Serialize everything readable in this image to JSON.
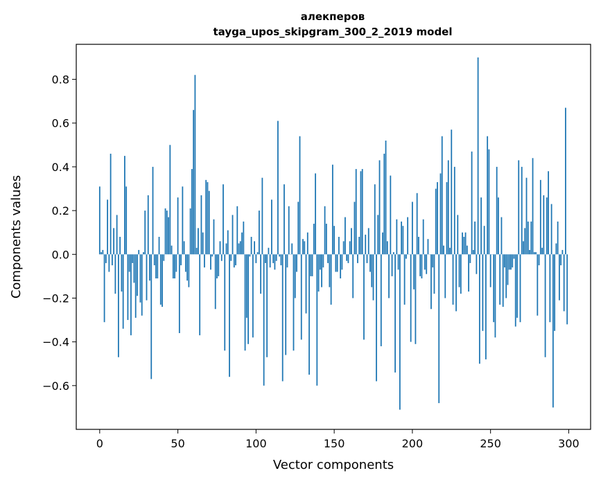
{
  "chart_data": {
    "type": "bar",
    "title": "алекперов",
    "subtitle": "tayga_upos_skipgram_300_2_2019 model",
    "xlabel": "Vector components",
    "ylabel": "Components values",
    "xlim": [
      -15,
      314
    ],
    "ylim": [
      -0.8,
      0.96
    ],
    "xticks": [
      0,
      50,
      100,
      150,
      200,
      250,
      300
    ],
    "yticks": [
      -0.6,
      -0.4,
      -0.2,
      0.0,
      0.2,
      0.4,
      0.6,
      0.8
    ],
    "xtick_labels": [
      "0",
      "50",
      "100",
      "150",
      "200",
      "250",
      "300"
    ],
    "ytick_labels": [
      "−0.6",
      "−0.4",
      "−0.2",
      "0.0",
      "0.2",
      "0.4",
      "0.6",
      "0.8"
    ],
    "bar_color": "#1f77b4",
    "values": [
      0.31,
      0.01,
      0.02,
      -0.31,
      -0.04,
      0.25,
      -0.08,
      0.46,
      -0.05,
      0.12,
      -0.18,
      0.18,
      -0.47,
      0.08,
      -0.17,
      -0.34,
      0.45,
      0.31,
      -0.3,
      -0.08,
      -0.37,
      -0.04,
      -0.13,
      -0.29,
      -0.19,
      0.02,
      -0.22,
      -0.28,
      0.01,
      0.2,
      -0.21,
      0.27,
      -0.12,
      -0.57,
      0.4,
      -0.05,
      -0.11,
      -0.11,
      0.08,
      -0.23,
      -0.24,
      -0.03,
      0.21,
      0.2,
      0.17,
      0.5,
      0.04,
      -0.11,
      -0.11,
      -0.08,
      0.26,
      -0.36,
      -0.05,
      0.31,
      0.06,
      -0.08,
      -0.12,
      -0.15,
      0.21,
      0.39,
      0.66,
      0.82,
      0.03,
      0.12,
      -0.37,
      0.27,
      0.1,
      -0.06,
      0.34,
      0.33,
      0.29,
      -0.07,
      -0.01,
      0.16,
      -0.25,
      -0.11,
      -0.1,
      0.06,
      -0.03,
      0.32,
      -0.44,
      0.05,
      0.11,
      -0.56,
      -0.03,
      0.18,
      -0.06,
      -0.05,
      0.22,
      0.05,
      0.06,
      0.1,
      0.15,
      -0.44,
      -0.29,
      -0.41,
      -0.01,
      0.08,
      -0.38,
      0.06,
      -0.04,
      0.01,
      0.2,
      -0.18,
      0.35,
      -0.6,
      -0.04,
      -0.47,
      0.03,
      -0.06,
      0.25,
      -0.04,
      -0.07,
      -0.03,
      0.61,
      -0.01,
      -0.05,
      -0.58,
      0.32,
      -0.46,
      -0.06,
      0.22,
      0.0,
      0.05,
      -0.44,
      -0.2,
      -0.08,
      0.24,
      0.54,
      -0.39,
      0.07,
      0.06,
      -0.27,
      0.1,
      -0.55,
      -0.1,
      -0.1,
      0.14,
      0.37,
      -0.6,
      -0.17,
      -0.07,
      -0.15,
      -0.06,
      0.22,
      0.14,
      -0.04,
      -0.15,
      -0.23,
      0.41,
      0.13,
      -0.08,
      -0.08,
      0.08,
      -0.11,
      -0.07,
      0.06,
      0.17,
      -0.03,
      -0.04,
      0.06,
      0.12,
      -0.2,
      0.24,
      0.39,
      -0.04,
      0.08,
      0.38,
      0.39,
      -0.39,
      0.09,
      -0.04,
      0.12,
      -0.08,
      -0.15,
      -0.21,
      0.32,
      -0.58,
      0.18,
      0.43,
      -0.42,
      0.1,
      0.46,
      0.52,
      0.06,
      -0.2,
      0.36,
      -0.1,
      0.01,
      -0.54,
      0.16,
      -0.07,
      -0.71,
      0.15,
      0.13,
      -0.23,
      -0.02,
      0.17,
      0.0,
      -0.4,
      0.24,
      -0.16,
      -0.41,
      0.28,
      0.08,
      -0.1,
      -0.11,
      0.16,
      -0.07,
      -0.09,
      0.07,
      0.0,
      -0.25,
      -0.06,
      -0.18,
      0.3,
      0.33,
      -0.68,
      0.37,
      0.54,
      0.04,
      -0.2,
      0.33,
      0.43,
      0.03,
      0.57,
      -0.23,
      0.4,
      -0.26,
      0.18,
      -0.15,
      -0.18,
      0.1,
      0.08,
      0.1,
      0.04,
      -0.17,
      -0.04,
      0.47,
      0.02,
      0.15,
      -0.09,
      0.9,
      -0.5,
      0.26,
      -0.35,
      0.13,
      -0.48,
      0.54,
      0.48,
      -0.15,
      0.0,
      -0.31,
      -0.38,
      0.4,
      0.26,
      -0.23,
      0.17,
      -0.24,
      -0.06,
      -0.2,
      -0.14,
      -0.07,
      -0.07,
      -0.06,
      -0.02,
      -0.33,
      -0.29,
      0.43,
      -0.31,
      0.4,
      0.06,
      0.12,
      0.35,
      0.15,
      0.02,
      0.15,
      0.44,
      0.01,
      0.01,
      -0.28,
      -0.05,
      0.34,
      0.03,
      0.27,
      -0.47,
      0.26,
      0.38,
      -0.31,
      0.23,
      -0.7,
      -0.35,
      0.05,
      0.15,
      -0.21,
      -0.05,
      0.02,
      -0.26,
      0.67,
      -0.32
    ]
  }
}
